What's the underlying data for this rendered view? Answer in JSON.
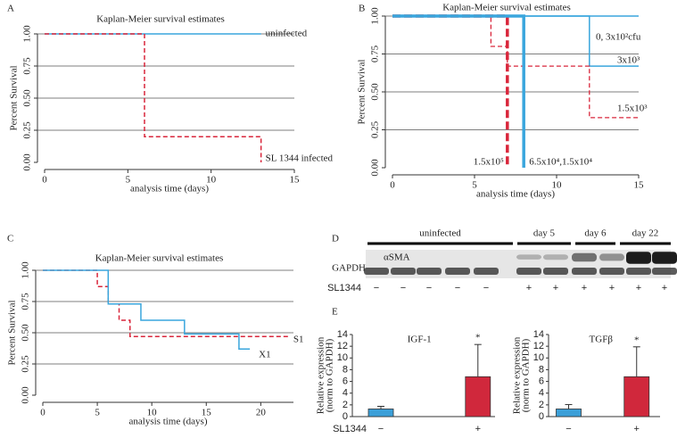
{
  "chart_data": [
    {
      "type": "step",
      "panel": "A",
      "title": "Kaplan-Meier survival estimates",
      "xlabel": "analysis time (days)",
      "ylabel": "Percent Survival",
      "xlim": [
        0,
        15
      ],
      "ylim": [
        0,
        1
      ],
      "xticks": [
        0,
        5,
        10,
        15
      ],
      "yticks": [
        {
          "value": 0,
          "label": "0.00"
        },
        {
          "value": 0.25,
          "label": "0.25"
        },
        {
          "value": 0.5,
          "label": "0.50"
        },
        {
          "value": 0.75,
          "label": "0.75"
        },
        {
          "value": 1,
          "label": "1.00"
        }
      ],
      "grid": true,
      "series": [
        {
          "name": "uninfected",
          "color": "#3aa6dd",
          "dash": false,
          "width": 1.5,
          "x": [
            0,
            13
          ],
          "values": [
            1,
            1
          ]
        },
        {
          "name": "SL 1344 infected",
          "color": "#d9263b",
          "dash": true,
          "width": 1.5,
          "x": [
            0,
            6,
            13
          ],
          "values": [
            1,
            0.2,
            0
          ]
        }
      ]
    },
    {
      "type": "step",
      "panel": "B",
      "title": "Kaplan-Meier survival estimates",
      "xlabel": "analysis time (days)",
      "ylabel": "Percent Survival",
      "xlim": [
        0,
        15
      ],
      "ylim": [
        0,
        1
      ],
      "xticks": [
        0,
        5,
        10,
        15
      ],
      "yticks": [
        {
          "value": 0,
          "label": "0.00"
        },
        {
          "value": 0.25,
          "label": "0.25"
        },
        {
          "value": 0.5,
          "label": "0.50"
        },
        {
          "value": 0.75,
          "label": "0.75"
        },
        {
          "value": 1,
          "label": "1.00"
        }
      ],
      "grid": true,
      "series": [
        {
          "name": "0, 3x10²cfu",
          "color": "#3aa6dd",
          "dash": false,
          "width": 1.5,
          "x": [
            0,
            15
          ],
          "values": [
            1,
            1
          ]
        },
        {
          "name": "3x10³",
          "color": "#3aa6dd",
          "dash": false,
          "width": 1.5,
          "x": [
            0,
            12,
            15
          ],
          "values": [
            1,
            0.67,
            0.67
          ]
        },
        {
          "name": "1.5x10³",
          "color": "#d9263b",
          "dash": true,
          "width": 1.3,
          "x": [
            0,
            6,
            7,
            12,
            15
          ],
          "values": [
            1,
            0.8,
            0.67,
            0.33,
            0.33
          ]
        },
        {
          "name": "1.5x10⁵",
          "color": "#d9263b",
          "dash": true,
          "width": 3.5,
          "x": [
            0,
            7
          ],
          "values": [
            1,
            0
          ]
        },
        {
          "name": "6.5x10⁴,1.5x10⁴",
          "color": "#3aa6dd",
          "dash": false,
          "width": 3.5,
          "x": [
            0,
            8
          ],
          "values": [
            1,
            0
          ]
        }
      ]
    },
    {
      "type": "step",
      "panel": "C",
      "title": "Kaplan-Meier survival estimates",
      "xlabel": "analysis time (days)",
      "ylabel": "Percent Survival",
      "xlim": [
        0,
        23
      ],
      "ylim": [
        0,
        1
      ],
      "xticks": [
        0,
        5,
        10,
        15,
        20
      ],
      "yticks": [
        {
          "value": 0,
          "label": "0.00"
        },
        {
          "value": 0.25,
          "label": "0.25"
        },
        {
          "value": 0.5,
          "label": "0.50"
        },
        {
          "value": 0.75,
          "label": "0.75"
        },
        {
          "value": 1,
          "label": "1.00"
        }
      ],
      "grid": true,
      "series": [
        {
          "name": "S1",
          "color": "#d9263b",
          "dash": true,
          "width": 1.5,
          "x": [
            0,
            5,
            6,
            7,
            8,
            22.5
          ],
          "values": [
            1,
            0.87,
            0.73,
            0.6,
            0.47,
            0.47
          ]
        },
        {
          "name": "X1",
          "color": "#3aa6dd",
          "dash": false,
          "width": 1.5,
          "x": [
            0,
            6,
            9,
            13,
            18,
            19
          ],
          "values": [
            1,
            0.73,
            0.6,
            0.49,
            0.37,
            0.37
          ]
        }
      ]
    },
    {
      "type": "bar",
      "panel": "E",
      "title": "IGF-1",
      "ylabel": [
        "Relative expression",
        "(norm to GAPDH)"
      ],
      "xlabel": "SL1344",
      "categories": [
        "−",
        "+"
      ],
      "values": [
        1.3,
        6.8
      ],
      "errors": [
        0.45,
        5.5
      ],
      "colors": [
        "#3b9fd8",
        "#d0283c"
      ],
      "annotation": "*",
      "ylim": [
        0,
        14
      ],
      "yticks": [
        0,
        2,
        4,
        6,
        8,
        10,
        12,
        14
      ]
    },
    {
      "type": "bar",
      "title": "TGFβ",
      "ylabel": [
        "Relative expression",
        "(norm to GAPDH)"
      ],
      "categories": [
        "−",
        "+"
      ],
      "values": [
        1.3,
        6.8
      ],
      "errors": [
        0.75,
        5.1
      ],
      "colors": [
        "#3b9fd8",
        "#d0283c"
      ],
      "annotation": "*",
      "ylim": [
        0,
        14
      ],
      "yticks": [
        0,
        2,
        4,
        6,
        8,
        10,
        12,
        14
      ]
    }
  ],
  "blot": {
    "panel": "D",
    "groups": [
      "uninfected",
      "day 5",
      "day 6",
      "day 22"
    ],
    "rows": [
      "αSMA",
      "GAPDH"
    ],
    "condition": "SL1344",
    "treatment": [
      "−",
      "−",
      "−",
      "−",
      "−",
      "+",
      "+",
      "+",
      "+",
      "+",
      "+"
    ]
  }
}
